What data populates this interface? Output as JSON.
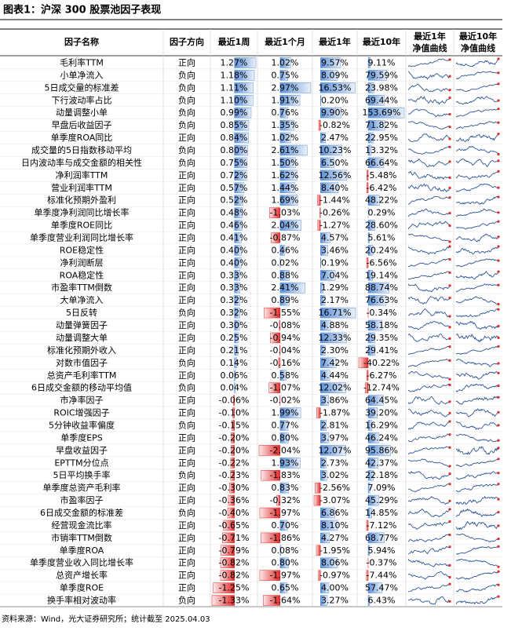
{
  "title": "图表1：沪深 300 股票池因子表现",
  "header": {
    "columns": [
      "因子名称",
      "因子方向",
      "最近1周",
      "最近1个月",
      "最近1年",
      "最近10年"
    ],
    "curves": [
      [
        "最近1年",
        "净值曲线"
      ],
      [
        "最近10年",
        "净值曲线"
      ]
    ]
  },
  "table": {
    "rows": [
      [
        "毛利率TTM",
        "正向",
        "1.27%",
        "1.02%",
        "9.57%",
        "9.11%"
      ],
      [
        "小单净流入",
        "负向",
        "1.18%",
        "0.75%",
        "8.09%",
        "79.59%"
      ],
      [
        "5日成交量的标准差",
        "负向",
        "1.11%",
        "2.97%",
        "16.53%",
        "23.98%"
      ],
      [
        "下行波动率占比",
        "负向",
        "1.10%",
        "1.91%",
        "0.20%",
        "69.44%"
      ],
      [
        "动量调整小单",
        "负向",
        "0.99%",
        "0.76%",
        "9.90%",
        "153.69%"
      ],
      [
        "早盘后收益因子",
        "负向",
        "0.85%",
        "1.35%",
        "-0.82%",
        "71.82%"
      ],
      [
        "单季度ROA同比",
        "正向",
        "0.84%",
        "1.02%",
        "2.47%",
        "22.95%"
      ],
      [
        "成交量的5日指数移动平均",
        "负向",
        "0.80%",
        "2.61%",
        "10.23%",
        "13.32%"
      ],
      [
        "日内波动率与成交金额的相关性",
        "负向",
        "0.75%",
        "1.50%",
        "6.50%",
        "66.64%"
      ],
      [
        "净利润率TTM",
        "正向",
        "0.72%",
        "1.62%",
        "12.56%",
        "-5.48%"
      ],
      [
        "营业利润率TTM",
        "正向",
        "0.57%",
        "1.44%",
        "8.40%",
        "-6.42%"
      ],
      [
        "标准化预期外盈利",
        "正向",
        "0.52%",
        "1.69%",
        "-1.44%",
        "48.22%"
      ],
      [
        "单季度净利润同比增长率",
        "正向",
        "0.48%",
        "-1.03%",
        "-0.26%",
        "0.29%"
      ],
      [
        "单季度ROE同比",
        "正向",
        "0.46%",
        "2.04%",
        "-1.27%",
        "28.60%"
      ],
      [
        "单季度营业利润同比增长率",
        "正向",
        "0.41%",
        "-0.87%",
        "4.57%",
        "5.61%"
      ],
      [
        "ROE稳定性",
        "正向",
        "0.40%",
        "0.46%",
        "3.46%",
        "20.24%"
      ],
      [
        "净利润断层",
        "正向",
        "0.40%",
        "0.02%",
        "0.19%",
        "-6.56%"
      ],
      [
        "ROA稳定性",
        "正向",
        "0.33%",
        "0.88%",
        "7.04%",
        "19.14%"
      ],
      [
        "市盈率TTM倒数",
        "正向",
        "0.33%",
        "2.41%",
        "1.29%",
        "88.74%"
      ],
      [
        "大单净流入",
        "正向",
        "0.32%",
        "0.89%",
        "2.17%",
        "76.63%"
      ],
      [
        "5日反转",
        "负向",
        "0.32%",
        "-1.55%",
        "16.71%",
        "-0.34%"
      ],
      [
        "动量弹簧因子",
        "正向",
        "0.30%",
        "-0.08%",
        "4.88%",
        "58.18%"
      ],
      [
        "动量调整大单",
        "正向",
        "0.25%",
        "-0.94%",
        "12.33%",
        "29.35%"
      ],
      [
        "标准化预期外收入",
        "正向",
        "0.21%",
        "-0.04%",
        "2.30%",
        "29.41%"
      ],
      [
        "对数市值因子",
        "负向",
        "0.14%",
        "-0.16%",
        "7.42%",
        "-40.22%"
      ],
      [
        "总资产毛利率TTM",
        "正向",
        "0.06%",
        "0.58%",
        "4.44%",
        "-6.27%"
      ],
      [
        "6日成交金额的移动平均值",
        "负向",
        "0.04%",
        "-1.07%",
        "12.02%",
        "-12.74%"
      ],
      [
        "市净率因子",
        "正向",
        "-0.06%",
        "-0.02%",
        "3.86%",
        "64.45%"
      ],
      [
        "ROIC增强因子",
        "正向",
        "-0.10%",
        "1.99%",
        "-1.87%",
        "39.20%"
      ],
      [
        "5分钟收益率偏度",
        "负向",
        "-0.15%",
        "0.77%",
        "2.81%",
        "16.29%"
      ],
      [
        "单季度EPS",
        "正向",
        "-0.20%",
        "0.80%",
        "3.97%",
        "46.24%"
      ],
      [
        "早盘收益因子",
        "正向",
        "-0.20%",
        "-2.04%",
        "12.07%",
        "95.86%"
      ],
      [
        "EPTTM分位点",
        "正向",
        "-0.22%",
        "1.93%",
        "2.73%",
        "42.37%"
      ],
      [
        "5日平均换手率",
        "负向",
        "-0.23%",
        "-1.83%",
        "3.02%",
        "22.18%"
      ],
      [
        "单季度总资产毛利率",
        "正向",
        "-0.30%",
        "0.83%",
        "-2.56%",
        "7.09%"
      ],
      [
        "市盈率因子",
        "正向",
        "-0.36%",
        "-0.32%",
        "-3.07%",
        "45.29%"
      ],
      [
        "6日成交金额的标准差",
        "负向",
        "-0.40%",
        "-1.97%",
        "6.86%",
        "14.85%"
      ],
      [
        "经营现金流比率",
        "正向",
        "-0.65%",
        "0.70%",
        "8.10%",
        "-7.12%"
      ],
      [
        "市销率TTM倒数",
        "正向",
        "-0.71%",
        "-1.86%",
        "4.27%",
        "68.77%"
      ],
      [
        "单季度ROA",
        "正向",
        "-0.79%",
        "0.08%",
        "-1.95%",
        "5.94%"
      ],
      [
        "单季度营业收入同比增长率",
        "正向",
        "-0.82%",
        "0.80%",
        "8.06%",
        "-0.37%"
      ],
      [
        "总资产增长率",
        "正向",
        "-0.82%",
        "-1.97%",
        "-0.97%",
        "-7.44%"
      ],
      [
        "单季度ROE",
        "正向",
        "-1.25%",
        "0.65%",
        "4.00%",
        "57.47%"
      ],
      [
        "换手率相对波动率",
        "负向",
        "-1.33%",
        "-1.64%",
        "3.27%",
        "6.43%"
      ]
    ]
  },
  "source": "资料来源：Wind，光大证券研究所；统计截至 2025.04.03"
}
